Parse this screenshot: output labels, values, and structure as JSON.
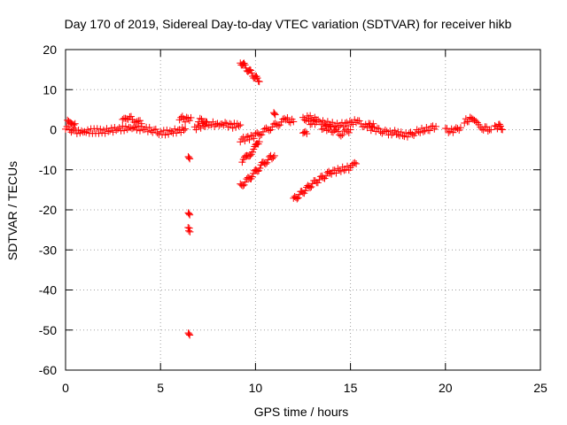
{
  "chart_data": {
    "type": "scatter",
    "title": "Day 170 of 2019, Sidereal Day-to-day VTEC variation (SDTVAR) for receiver hikb",
    "xlabel": "GPS time / hours",
    "ylabel": "SDTVAR / TECUs",
    "xlim": [
      0,
      25
    ],
    "ylim": [
      -60,
      20
    ],
    "xticks": [
      0,
      5,
      10,
      15,
      20,
      25
    ],
    "yticks": [
      -60,
      -50,
      -40,
      -30,
      -20,
      -10,
      0,
      10,
      20
    ],
    "grid": true,
    "marker": "+",
    "color": "#ff0000",
    "series": [
      {
        "name": "SDTVAR",
        "segments": [
          {
            "x": [
              0.0,
              0.3,
              0.6,
              1.0,
              1.5,
              2.0,
              2.5,
              3.0,
              3.5,
              4.0,
              4.5,
              5.0,
              5.5,
              6.0,
              6.3
            ],
            "y": [
              0.5,
              0.0,
              -0.5,
              -0.5,
              -0.3,
              -0.4,
              0.0,
              0.3,
              0.5,
              0.3,
              0.0,
              -0.8,
              -0.6,
              -0.2,
              0.2
            ]
          },
          {
            "x": [
              0.1,
              0.3,
              0.5
            ],
            "y": [
              2.8,
              2.2,
              1.5
            ]
          },
          {
            "x": [
              3.0,
              3.3,
              3.6,
              4.0
            ],
            "y": [
              2.0,
              3.0,
              2.5,
              1.5
            ]
          },
          {
            "x": [
              6.0,
              6.3,
              6.6
            ],
            "y": [
              3.0,
              2.5,
              3.0
            ]
          },
          {
            "x": [
              6.8,
              7.2,
              7.6,
              8.0,
              8.4,
              8.8,
              9.2
            ],
            "y": [
              0.5,
              1.0,
              1.5,
              1.2,
              1.4,
              1.0,
              1.2
            ]
          },
          {
            "x": [
              7.0,
              7.4
            ],
            "y": [
              2.5,
              2.0
            ]
          },
          {
            "x": [
              6.5
            ],
            "y": [
              -7.0
            ]
          },
          {
            "x": [
              6.5
            ],
            "y": [
              -21.0
            ]
          },
          {
            "x": [
              6.45,
              6.55
            ],
            "y": [
              -24.5,
              -25.5
            ]
          },
          {
            "x": [
              6.5
            ],
            "y": [
              -51.0
            ]
          },
          {
            "x": [
              9.2,
              9.4,
              9.6,
              9.8,
              10.0,
              10.2
            ],
            "y": [
              17.0,
              16.0,
              15.0,
              14.0,
              13.0,
              12.0
            ]
          },
          {
            "x": [
              9.2,
              9.6,
              10.0,
              10.4,
              10.8,
              11.2,
              11.6,
              12.0
            ],
            "y": [
              -2.5,
              -2.0,
              -1.5,
              -0.5,
              0.5,
              1.5,
              2.5,
              2.0
            ]
          },
          {
            "x": [
              9.3,
              9.6,
              9.9,
              10.2
            ],
            "y": [
              -8.0,
              -6.5,
              -5.0,
              -3.0
            ]
          },
          {
            "x": [
              9.2,
              9.6,
              10.0,
              10.4,
              10.8,
              11.0
            ],
            "y": [
              -14.0,
              -12.5,
              -10.5,
              -8.5,
              -7.0,
              -6.5
            ]
          },
          {
            "x": [
              11.0
            ],
            "y": [
              4.0
            ]
          },
          {
            "x": [
              12.0,
              12.5,
              13.0,
              13.5,
              14.0,
              14.5,
              15.0,
              15.3
            ],
            "y": [
              -17.5,
              -15.5,
              -13.5,
              -12.0,
              -10.5,
              -10.0,
              -9.5,
              -8.5
            ]
          },
          {
            "x": [
              12.5,
              12.8,
              13.2
            ],
            "y": [
              2.5,
              3.0,
              2.5
            ]
          },
          {
            "x": [
              12.8,
              13.3,
              13.8,
              14.3,
              14.8,
              15.3,
              15.8,
              16.2
            ],
            "y": [
              1.5,
              2.0,
              1.5,
              1.0,
              1.5,
              2.0,
              1.0,
              1.5
            ]
          },
          {
            "x": [
              12.5,
              12.7
            ],
            "y": [
              -0.5,
              -1.0
            ]
          },
          {
            "x": [
              13.5,
              14.0,
              14.5,
              15.0
            ],
            "y": [
              0.5,
              0.0,
              -1.0,
              0.0
            ]
          },
          {
            "x": [
              16.0,
              16.5,
              17.0,
              17.5
            ],
            "y": [
              0.5,
              0.0,
              -1.0,
              -0.5
            ]
          },
          {
            "x": [
              17.5,
              18.0,
              18.5,
              19.0,
              19.5
            ],
            "y": [
              -1.0,
              -1.5,
              -0.5,
              0.0,
              0.8
            ]
          },
          {
            "x": [
              20.0,
              20.4,
              20.8
            ],
            "y": [
              0.0,
              -0.5,
              0.5
            ]
          },
          {
            "x": [
              21.0,
              21.3,
              21.6,
              22.0,
              22.4
            ],
            "y": [
              2.0,
              2.5,
              1.5,
              0.5,
              0.0
            ]
          },
          {
            "x": [
              22.6,
              22.8,
              23.0
            ],
            "y": [
              0.5,
              1.0,
              0.0
            ]
          }
        ]
      }
    ]
  }
}
